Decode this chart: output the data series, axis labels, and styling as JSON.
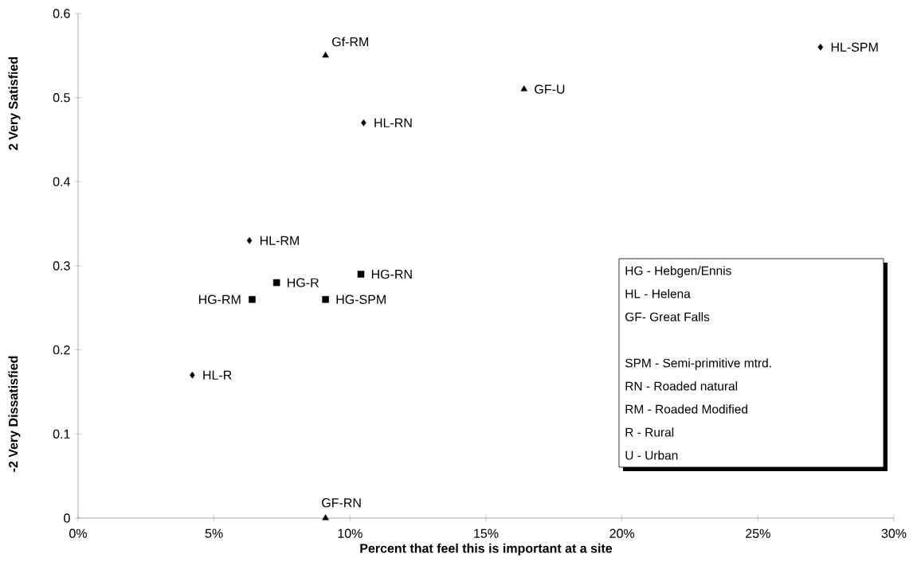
{
  "chart_data": {
    "type": "scatter",
    "xlabel": "Percent that feel this is important at a site",
    "ylabel": "2 Very Satisfied",
    "xlim": [
      0,
      30
    ],
    "ylim": [
      0,
      0.6
    ],
    "xticks": [
      {
        "value": 0,
        "label": "0%"
      },
      {
        "value": 5,
        "label": "5%"
      },
      {
        "value": 10,
        "label": "10%"
      },
      {
        "value": 15,
        "label": "15%"
      },
      {
        "value": 20,
        "label": "20%"
      },
      {
        "value": 25,
        "label": "25%"
      },
      {
        "value": 30,
        "label": "30%"
      }
    ],
    "yticks": [
      0,
      0.1,
      0.2,
      0.3,
      0.4,
      0.5,
      0.6
    ],
    "series": [
      {
        "color": "#000000",
        "marker": "diamond",
        "x": [
          10.5,
          27.3,
          6.3,
          4.2
        ],
        "values": [
          0.47,
          0.56,
          0.33,
          0.17
        ]
      },
      {
        "color": "#000000",
        "marker": "square",
        "x": [
          7.3,
          10.4,
          6.4,
          9.1
        ],
        "values": [
          0.28,
          0.29,
          0.26,
          0.26
        ]
      },
      {
        "color": "#000000",
        "marker": "triangle",
        "x": [
          9.1,
          16.4,
          9.1
        ],
        "values": [
          0.55,
          0.51,
          0
        ]
      }
    ],
    "annotations": [
      "-2 Very Dissatisfied",
      "HG - Hebgen/Ennis",
      "HL - Helena",
      "GF- Great Falls",
      "SPM - Semi-primitive mtrd.",
      "RN - Roaded natural",
      "RM -  Roaded Modified",
      "R - Rural",
      "U - Urban",
      {
        "text": "Gf-RM",
        "x": 9.1,
        "y": 0.55
      },
      {
        "text": "HL-RN",
        "x": 10.5,
        "y": 0.47
      },
      {
        "text": "GF-U",
        "x": 16.4,
        "y": 0.51
      },
      {
        "text": "HL-SPM",
        "x": 27.3,
        "y": 0.56
      },
      {
        "text": "HL-RM",
        "x": 6.3,
        "y": 0.33
      },
      {
        "text": "HG-R",
        "x": 7.3,
        "y": 0.28
      },
      {
        "text": "HG-RN",
        "x": 10.4,
        "y": 0.29
      },
      {
        "text": "HG-RM",
        "x": 6.4,
        "y": 0.26
      },
      {
        "text": "HG-SPM",
        "x": 9.1,
        "y": 0.26
      },
      {
        "text": "HL-R",
        "x": 4.2,
        "y": 0.17
      },
      {
        "text": "GF-RN",
        "x": 9.1,
        "y": 0
      }
    ]
  }
}
